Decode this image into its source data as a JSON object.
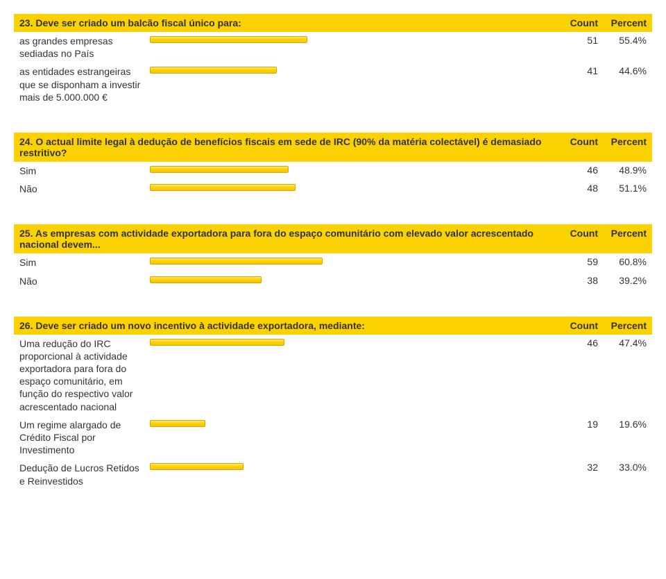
{
  "barMaxWidth": 410,
  "headers": {
    "count": "Count",
    "percent": "Percent"
  },
  "questions": [
    {
      "title": "23. Deve ser criado um balcão fiscal único para:",
      "rows": [
        {
          "label": "as grandes empresas sediadas no País",
          "count": "51",
          "pct": "55.4%",
          "pctVal": 55.4
        },
        {
          "label": "as entidades estrangeiras que se disponham a investir mais de 5.000.000 €",
          "count": "41",
          "pct": "44.6%",
          "pctVal": 44.6
        }
      ]
    },
    {
      "title": "24. O actual limite legal à dedução de benefícios fiscais em sede de IRC (90% da matéria colectável) é demasiado restritivo?",
      "rows": [
        {
          "label": "Sim",
          "count": "46",
          "pct": "48.9%",
          "pctVal": 48.9
        },
        {
          "label": "Não",
          "count": "48",
          "pct": "51.1%",
          "pctVal": 51.1
        }
      ]
    },
    {
      "title": "25. As empresas com actividade exportadora para fora do espaço comunitário com elevado valor acrescentado nacional devem...",
      "rows": [
        {
          "label": "Sim",
          "count": "59",
          "pct": "60.8%",
          "pctVal": 60.8
        },
        {
          "label": "Não",
          "count": "38",
          "pct": "39.2%",
          "pctVal": 39.2
        }
      ]
    },
    {
      "title": "26. Deve ser criado um novo incentivo à actividade exportadora, mediante:",
      "rows": [
        {
          "label": "Uma redução do IRC proporcional à actividade exportadora para fora do espaço comunitário, em função do respectivo valor acrescentado nacional",
          "count": "46",
          "pct": "47.4%",
          "pctVal": 47.4
        },
        {
          "label": "Um regime alargado de Crédito Fiscal por Investimento",
          "count": "19",
          "pct": "19.6%",
          "pctVal": 19.6
        },
        {
          "label": "Dedução de Lucros Retidos e Reinvestidos",
          "count": "32",
          "pct": "33.0%",
          "pctVal": 33.0
        }
      ]
    }
  ],
  "colors": {
    "headerBg": "#fcd100",
    "barFillTop": "#ffe56b",
    "barFillMid": "#ffd200",
    "barFillBot": "#fcc200",
    "barBorder": "#d6a900",
    "text": "#333333",
    "background": "#ffffff"
  },
  "typography": {
    "fontFamily": "Arial",
    "fontSize": 14,
    "headerWeight": "bold"
  }
}
